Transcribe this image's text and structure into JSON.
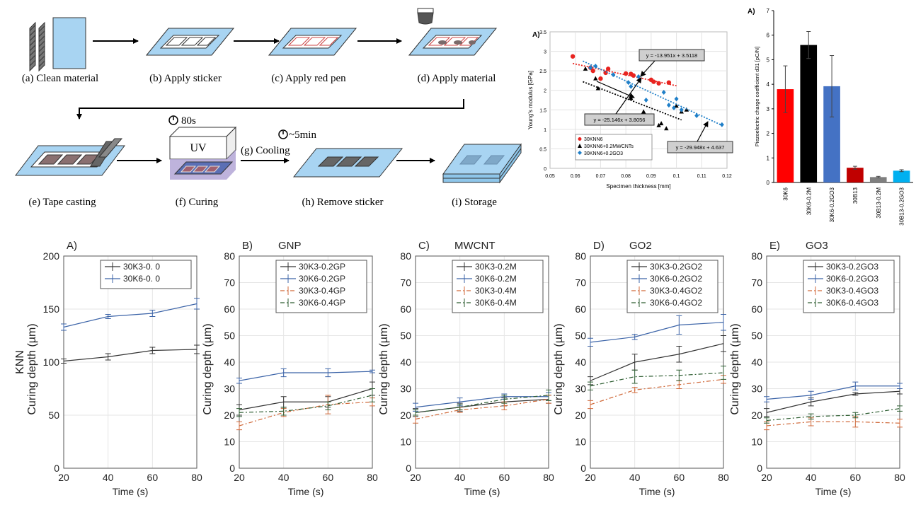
{
  "process": {
    "steps": [
      "(a) Clean material",
      "(b) Apply sticker",
      "(c) Apply red pen",
      "(d) Apply material",
      "(e) Tape casting",
      "(f) Curing",
      "(h) Remove sticker",
      "(i) Storage"
    ],
    "uv_label": "UV",
    "time_80s": "80s",
    "time_5min": "~5min",
    "cooling_label": "(g) Cooling"
  },
  "chart_data": [
    {
      "id": "youngs",
      "type": "scatter",
      "panel_label": "A)",
      "xlabel": "Specimen thickness [mm]",
      "ylabel": "Young's modulus [GPa]",
      "xlim": [
        0.05,
        0.12
      ],
      "ylim": [
        0,
        3.5
      ],
      "xticks": [
        "0.05",
        "0.06",
        "0.07",
        "0.08",
        "0.09",
        "0.1",
        "0.11",
        "0.12"
      ],
      "yticks": [
        "0",
        "0.5",
        "1",
        "1.5",
        "2",
        "2.5",
        "3",
        "3.5"
      ],
      "series": [
        {
          "name": "30KNN6",
          "color": "#e8231f",
          "marker": "circle",
          "x": [
            0.059,
            0.066,
            0.067,
            0.07,
            0.072,
            0.073,
            0.08,
            0.082,
            0.083,
            0.09,
            0.091,
            0.093,
            0.097
          ],
          "y": [
            2.87,
            2.58,
            2.5,
            2.3,
            2.45,
            2.55,
            2.43,
            2.42,
            2.38,
            2.27,
            2.22,
            2.18,
            2.2
          ],
          "trend": {
            "label": "y = -13.951x + 3.5118",
            "slope": -13.951,
            "intercept": 3.5118
          }
        },
        {
          "name": "30KNN6+0.2MWCNTs",
          "color": "#000000",
          "marker": "triangle",
          "x": [
            0.064,
            0.068,
            0.069,
            0.082,
            0.087,
            0.093,
            0.094,
            0.096,
            0.1,
            0.102,
            0.104
          ],
          "y": [
            2.55,
            2.3,
            2.05,
            1.8,
            1.45,
            1.1,
            1.15,
            1.02,
            1.6,
            1.45,
            1.5
          ],
          "trend": {
            "label": "y = -25.146x + 3.8056",
            "slope": -25.146,
            "intercept": 3.8056
          }
        },
        {
          "name": "30KNN6+0.2GO3",
          "color": "#1f7fc8",
          "marker": "diamond",
          "x": [
            0.066,
            0.068,
            0.075,
            0.081,
            0.082,
            0.085,
            0.088,
            0.095,
            0.097,
            0.099,
            0.1,
            0.102,
            0.108,
            0.118
          ],
          "y": [
            2.58,
            2.62,
            2.4,
            2.2,
            2.1,
            2.35,
            1.75,
            1.95,
            1.62,
            1.55,
            1.78,
            1.5,
            1.35,
            1.12
          ],
          "trend": {
            "label": "y = -29.948x + 4.637",
            "slope": -29.948,
            "intercept": 4.637
          }
        }
      ],
      "legend_position": "bottom-left"
    },
    {
      "id": "piezo",
      "type": "bar",
      "panel_label": "A)",
      "ylabel": "Piezoelectric charge coefficient d31 [pC/N]",
      "ylim": [
        0,
        7
      ],
      "yticks": [
        "0",
        "1",
        "2",
        "3",
        "4",
        "5",
        "6",
        "7"
      ],
      "categories": [
        "30K6",
        "30K6-0.2M",
        "30K6-0.2GO3",
        "30B13",
        "30B13-0.2M",
        "30B13-0.2GO3"
      ],
      "values": [
        3.8,
        5.6,
        3.92,
        0.6,
        0.22,
        0.48
      ],
      "errors": [
        0.95,
        0.55,
        1.25,
        0.06,
        0.03,
        0.04
      ],
      "colors": [
        "#ff0000",
        "#000000",
        "#4472c4",
        "#c00000",
        "#7f7f7f",
        "#00b0f0"
      ]
    },
    {
      "id": "panelA",
      "type": "line",
      "panel_label": "A)",
      "title": "",
      "row_label": "KNN",
      "xlabel": "Time (s)",
      "ylabel": "Curing depth (µm)",
      "x": [
        20,
        40,
        60,
        80
      ],
      "xlim": [
        20,
        80
      ],
      "ylim": [
        0,
        200
      ],
      "xticks": [
        "20",
        "40",
        "60",
        "80"
      ],
      "yticks": [
        "0",
        "50",
        "100",
        "150",
        "200"
      ],
      "legend_position": "top-right",
      "series": [
        {
          "name": "30K3-0. 0",
          "color": "#333333",
          "dash": "",
          "values": [
            101,
            105,
            111,
            112
          ],
          "err": [
            2,
            3,
            3,
            4
          ]
        },
        {
          "name": "30K6-0. 0",
          "color": "#3c64a8",
          "dash": "",
          "values": [
            133,
            143,
            146,
            155
          ],
          "err": [
            3,
            2,
            3,
            5
          ]
        }
      ]
    },
    {
      "id": "panelB",
      "type": "line",
      "panel_label": "B)",
      "title": "GNP",
      "xlabel": "Time (s)",
      "ylabel": "Curing depth (µm)",
      "x": [
        20,
        40,
        60,
        80
      ],
      "xlim": [
        20,
        80
      ],
      "ylim": [
        0,
        80
      ],
      "xticks": [
        "20",
        "40",
        "60",
        "80"
      ],
      "yticks": [
        "0",
        "10",
        "20",
        "30",
        "40",
        "50",
        "60",
        "70",
        "80"
      ],
      "legend_position": "top-right",
      "series": [
        {
          "name": "30K3-0.2GP",
          "color": "#333333",
          "dash": "",
          "values": [
            22,
            25,
            25,
            30
          ],
          "err": [
            2,
            2,
            2,
            2.5
          ]
        },
        {
          "name": "30K6-0.2GP",
          "color": "#3c64a8",
          "dash": "",
          "values": [
            33,
            36,
            36,
            36.5
          ],
          "err": [
            1,
            1.5,
            1.5,
            0.5
          ]
        },
        {
          "name": "30K3-0.4GP",
          "color": "#d06a3b",
          "dash": "6,3,2,3",
          "values": [
            16,
            21,
            24,
            25
          ],
          "err": [
            1.5,
            1.5,
            3.5,
            1.5
          ]
        },
        {
          "name": "30K6-0.4GP",
          "color": "#2e5e32",
          "dash": "6,3,2,3",
          "values": [
            21,
            21.5,
            23.5,
            27.5
          ],
          "err": [
            1.5,
            1.5,
            1.5,
            2.5
          ]
        }
      ]
    },
    {
      "id": "panelC",
      "type": "line",
      "panel_label": "C)",
      "title": "MWCNT",
      "xlabel": "Time (s)",
      "ylabel": "Curing depth (µm)",
      "x": [
        20,
        40,
        60,
        80
      ],
      "xlim": [
        20,
        80
      ],
      "ylim": [
        0,
        80
      ],
      "xticks": [
        "20",
        "40",
        "60",
        "80"
      ],
      "yticks": [
        "0",
        "10",
        "20",
        "30",
        "40",
        "50",
        "60",
        "70",
        "80"
      ],
      "legend_position": "top-right",
      "series": [
        {
          "name": "30K3-0.2M",
          "color": "#333333",
          "dash": "",
          "values": [
            21,
            23,
            25,
            26
          ],
          "err": [
            1.5,
            1.5,
            1.5,
            1.5
          ]
        },
        {
          "name": "30K6-0.2M",
          "color": "#3c64a8",
          "dash": "",
          "values": [
            23,
            25,
            27,
            27
          ],
          "err": [
            1.5,
            1.5,
            1,
            1.5
          ]
        },
        {
          "name": "30K3-0.4M",
          "color": "#d06a3b",
          "dash": "6,3,2,3",
          "values": [
            18.5,
            22,
            23.5,
            26
          ],
          "err": [
            1.5,
            1,
            1.5,
            1.5
          ]
        },
        {
          "name": "30K6-0.4M",
          "color": "#2e5e32",
          "dash": "6,3,2,3",
          "values": [
            21,
            23,
            26,
            27.5
          ],
          "err": [
            1,
            1,
            1.5,
            2
          ]
        }
      ]
    },
    {
      "id": "panelD",
      "type": "line",
      "panel_label": "D)",
      "title": "GO2",
      "xlabel": "Time (s)",
      "ylabel": "Curing depth (µm)",
      "x": [
        20,
        40,
        60,
        80
      ],
      "xlim": [
        20,
        80
      ],
      "ylim": [
        0,
        80
      ],
      "xticks": [
        "20",
        "40",
        "60",
        "80"
      ],
      "yticks": [
        "0",
        "10",
        "20",
        "30",
        "40",
        "50",
        "60",
        "70",
        "80"
      ],
      "legend_position": "top-right",
      "series": [
        {
          "name": "30K3-0.2GO2",
          "color": "#333333",
          "dash": "",
          "values": [
            33,
            40,
            43,
            47
          ],
          "err": [
            1.5,
            3,
            3,
            3
          ]
        },
        {
          "name": "30K6-0.2GO2",
          "color": "#3c64a8",
          "dash": "",
          "values": [
            47.5,
            49.5,
            54,
            55
          ],
          "err": [
            1.5,
            1,
            3.5,
            3
          ]
        },
        {
          "name": "30K3-0.4GO2",
          "color": "#d06a3b",
          "dash": "6,3,2,3",
          "values": [
            24,
            29.5,
            31.5,
            33.5
          ],
          "err": [
            1.5,
            1,
            1.5,
            1.5
          ]
        },
        {
          "name": "30K6-0.4GO2",
          "color": "#2e5e32",
          "dash": "6,3,2,3",
          "values": [
            31,
            34.5,
            35,
            36
          ],
          "err": [
            1.5,
            2.5,
            2,
            2.5
          ]
        }
      ]
    },
    {
      "id": "panelE",
      "type": "line",
      "panel_label": "E)",
      "title": "GO3",
      "xlabel": "Time (s)",
      "ylabel": "Curing depth (µm)",
      "x": [
        20,
        40,
        60,
        80
      ],
      "xlim": [
        20,
        80
      ],
      "ylim": [
        0,
        80
      ],
      "xticks": [
        "20",
        "40",
        "60",
        "80"
      ],
      "yticks": [
        "0",
        "10",
        "20",
        "30",
        "40",
        "50",
        "60",
        "70",
        "80"
      ],
      "legend_position": "top-right",
      "series": [
        {
          "name": "30K3-0.2GO3",
          "color": "#333333",
          "dash": "",
          "values": [
            21,
            25,
            28,
            29
          ],
          "err": [
            1.5,
            1.5,
            0.5,
            1
          ]
        },
        {
          "name": "30K6-0.2GO3",
          "color": "#3c64a8",
          "dash": "",
          "values": [
            26,
            27.5,
            31,
            31
          ],
          "err": [
            1,
            1.5,
            1.5,
            1
          ]
        },
        {
          "name": "30K3-0.4GO3",
          "color": "#d06a3b",
          "dash": "6,3,2,3",
          "values": [
            16,
            17.5,
            17.5,
            17
          ],
          "err": [
            1.5,
            1.5,
            2,
            1.5
          ]
        },
        {
          "name": "30K6-0.4GO3",
          "color": "#2e5e32",
          "dash": "6,3,2,3",
          "values": [
            18,
            19.5,
            20,
            22.5
          ],
          "err": [
            1,
            1,
            1,
            1
          ]
        }
      ]
    }
  ]
}
